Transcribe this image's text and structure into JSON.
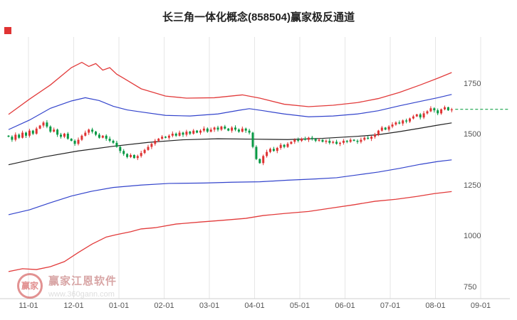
{
  "title": "长三角一体化概念(858504)赢家极反通道",
  "watermark": {
    "logo_text": "赢家",
    "brand": "赢家江恩软件",
    "url": "www.360gann.com"
  },
  "chart_data": {
    "type": "candlestick",
    "name": "长三角一体化概念",
    "symbol": "858504",
    "channel_name": "赢家极反通道",
    "title": "长三角一体化概念(858504)赢家极反通道",
    "x_ticks": [
      "11-01",
      "12-01",
      "01-01",
      "02-01",
      "03-01",
      "04-01",
      "05-01",
      "06-01",
      "07-01",
      "08-01",
      "09-01"
    ],
    "y_ticks": [
      1750,
      1500,
      1250,
      1000,
      750
    ],
    "ylim": [
      700,
      1950
    ],
    "grid": "vertical-only",
    "legend": "none",
    "last_price": 1625,
    "closes": [
      1490,
      1475,
      1500,
      1485,
      1510,
      1495,
      1520,
      1505,
      1530,
      1545,
      1560,
      1540,
      1515,
      1525,
      1500,
      1490,
      1505,
      1480,
      1470,
      1455,
      1475,
      1495,
      1510,
      1525,
      1515,
      1500,
      1485,
      1495,
      1480,
      1470,
      1460,
      1440,
      1420,
      1405,
      1390,
      1400,
      1385,
      1395,
      1410,
      1425,
      1440,
      1455,
      1470,
      1480,
      1490,
      1485,
      1495,
      1505,
      1495,
      1510,
      1500,
      1515,
      1505,
      1520,
      1510,
      1520,
      1530,
      1515,
      1525,
      1535,
      1525,
      1540,
      1530,
      1520,
      1535,
      1525,
      1515,
      1530,
      1520,
      1510,
      1440,
      1380,
      1360,
      1395,
      1415,
      1430,
      1420,
      1435,
      1450,
      1440,
      1455,
      1465,
      1475,
      1470,
      1480,
      1475,
      1485,
      1480,
      1470,
      1475,
      1465,
      1470,
      1460,
      1465,
      1455,
      1460,
      1470,
      1465,
      1475,
      1470,
      1465,
      1475,
      1485,
      1480,
      1490,
      1500,
      1520,
      1535,
      1525,
      1540,
      1550,
      1560,
      1555,
      1570,
      1565,
      1580,
      1590,
      1600,
      1585,
      1605,
      1615,
      1630,
      1620,
      1605,
      1625,
      1635,
      1620,
      1625
    ],
    "bands": {
      "outer_upper_red": [
        [
          0,
          1600
        ],
        [
          6,
          1675
        ],
        [
          12,
          1745
        ],
        [
          18,
          1830
        ],
        [
          21,
          1856
        ],
        [
          23,
          1836
        ],
        [
          25,
          1850
        ],
        [
          27,
          1818
        ],
        [
          29,
          1830
        ],
        [
          31,
          1798
        ],
        [
          33,
          1778
        ],
        [
          38,
          1726
        ],
        [
          45,
          1690
        ],
        [
          51,
          1680
        ],
        [
          59,
          1682
        ],
        [
          67,
          1696
        ],
        [
          72,
          1680
        ],
        [
          79,
          1650
        ],
        [
          86,
          1638
        ],
        [
          93,
          1645
        ],
        [
          100,
          1658
        ],
        [
          106,
          1678
        ],
        [
          112,
          1708
        ],
        [
          118,
          1745
        ],
        [
          123,
          1778
        ],
        [
          127,
          1806
        ]
      ],
      "inner_upper_blue": [
        [
          0,
          1525
        ],
        [
          6,
          1572
        ],
        [
          12,
          1630
        ],
        [
          18,
          1666
        ],
        [
          22,
          1682
        ],
        [
          26,
          1668
        ],
        [
          30,
          1640
        ],
        [
          34,
          1622
        ],
        [
          38,
          1612
        ],
        [
          45,
          1595
        ],
        [
          52,
          1592
        ],
        [
          60,
          1602
        ],
        [
          66,
          1620
        ],
        [
          69,
          1628
        ],
        [
          73,
          1618
        ],
        [
          79,
          1602
        ],
        [
          86,
          1588
        ],
        [
          93,
          1592
        ],
        [
          100,
          1602
        ],
        [
          106,
          1618
        ],
        [
          112,
          1642
        ],
        [
          118,
          1664
        ],
        [
          123,
          1682
        ],
        [
          127,
          1698
        ]
      ],
      "middle_black": [
        [
          0,
          1352
        ],
        [
          10,
          1390
        ],
        [
          20,
          1420
        ],
        [
          30,
          1443
        ],
        [
          40,
          1462
        ],
        [
          50,
          1475
        ],
        [
          60,
          1480
        ],
        [
          70,
          1478
        ],
        [
          80,
          1476
        ],
        [
          90,
          1482
        ],
        [
          100,
          1492
        ],
        [
          106,
          1500
        ],
        [
          112,
          1515
        ],
        [
          118,
          1532
        ],
        [
          123,
          1547
        ],
        [
          127,
          1558
        ]
      ],
      "inner_lower_blue": [
        [
          0,
          1106
        ],
        [
          6,
          1130
        ],
        [
          12,
          1165
        ],
        [
          18,
          1198
        ],
        [
          24,
          1222
        ],
        [
          30,
          1240
        ],
        [
          38,
          1252
        ],
        [
          46,
          1260
        ],
        [
          56,
          1262
        ],
        [
          64,
          1266
        ],
        [
          72,
          1268
        ],
        [
          80,
          1276
        ],
        [
          88,
          1282
        ],
        [
          94,
          1288
        ],
        [
          100,
          1302
        ],
        [
          106,
          1316
        ],
        [
          112,
          1334
        ],
        [
          118,
          1354
        ],
        [
          123,
          1368
        ],
        [
          127,
          1376
        ]
      ],
      "outer_lower_red": [
        [
          0,
          826
        ],
        [
          4,
          840
        ],
        [
          8,
          836
        ],
        [
          12,
          850
        ],
        [
          16,
          875
        ],
        [
          20,
          920
        ],
        [
          24,
          962
        ],
        [
          28,
          996
        ],
        [
          31,
          1008
        ],
        [
          35,
          1022
        ],
        [
          38,
          1036
        ],
        [
          42,
          1042
        ],
        [
          48,
          1060
        ],
        [
          55,
          1070
        ],
        [
          61,
          1078
        ],
        [
          68,
          1088
        ],
        [
          73,
          1102
        ],
        [
          79,
          1112
        ],
        [
          86,
          1122
        ],
        [
          93,
          1140
        ],
        [
          99,
          1155
        ],
        [
          105,
          1172
        ],
        [
          111,
          1182
        ],
        [
          117,
          1196
        ],
        [
          122,
          1210
        ],
        [
          127,
          1220
        ]
      ]
    },
    "colors": {
      "up_candle": "#df3333",
      "down_candle": "#089944",
      "outer_band": "#e23b3b",
      "inner_band": "#3344cc",
      "middle_line": "#222222",
      "last_price_line": "#18a34a",
      "grid_line": "#e6e6e6",
      "axis_line": "#cfcfcf",
      "label": "#555555",
      "marker": "#e03333"
    }
  }
}
